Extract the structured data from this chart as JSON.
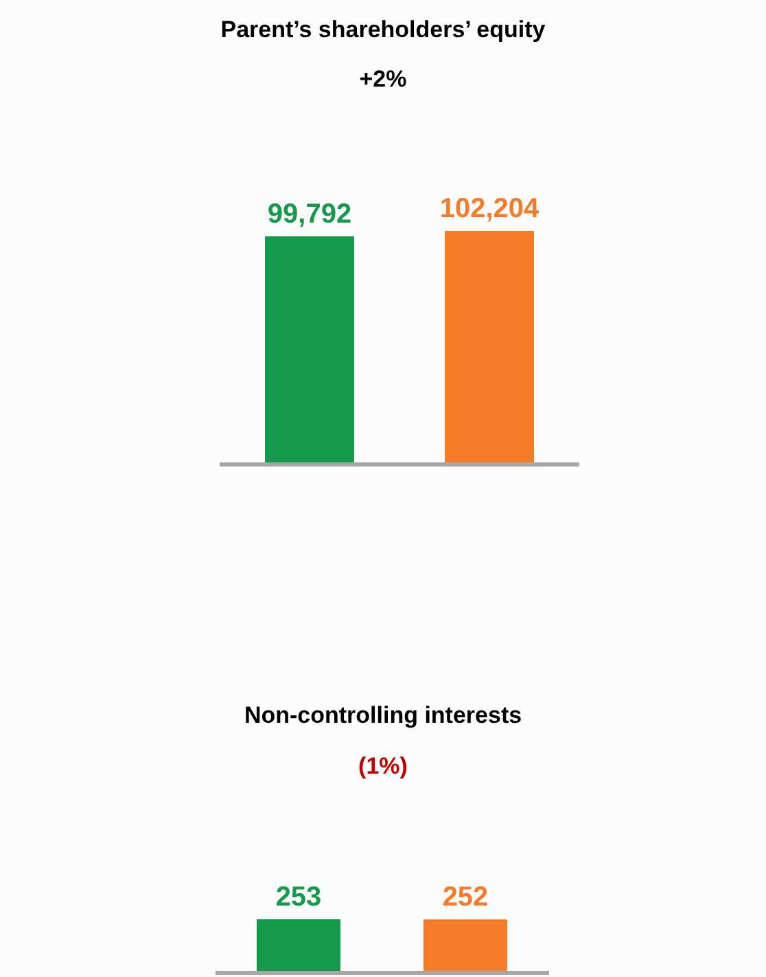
{
  "chart_data": [
    {
      "type": "bar",
      "title": "Parent’s shareholders’ equity",
      "subtitle": "+2%",
      "categories": [
        null,
        null
      ],
      "values": [
        99792,
        102204
      ],
      "value_labels": [
        "99,792",
        "102,204"
      ],
      "colors": [
        "#149a4a",
        "#f47b27"
      ]
    },
    {
      "type": "bar",
      "title": "Non-controlling interests",
      "subtitle": "(1%)",
      "categories": [
        null,
        null
      ],
      "values": [
        253,
        252
      ],
      "value_labels": [
        "253",
        "252"
      ],
      "colors": [
        "#149a4a",
        "#f47b27"
      ]
    }
  ]
}
